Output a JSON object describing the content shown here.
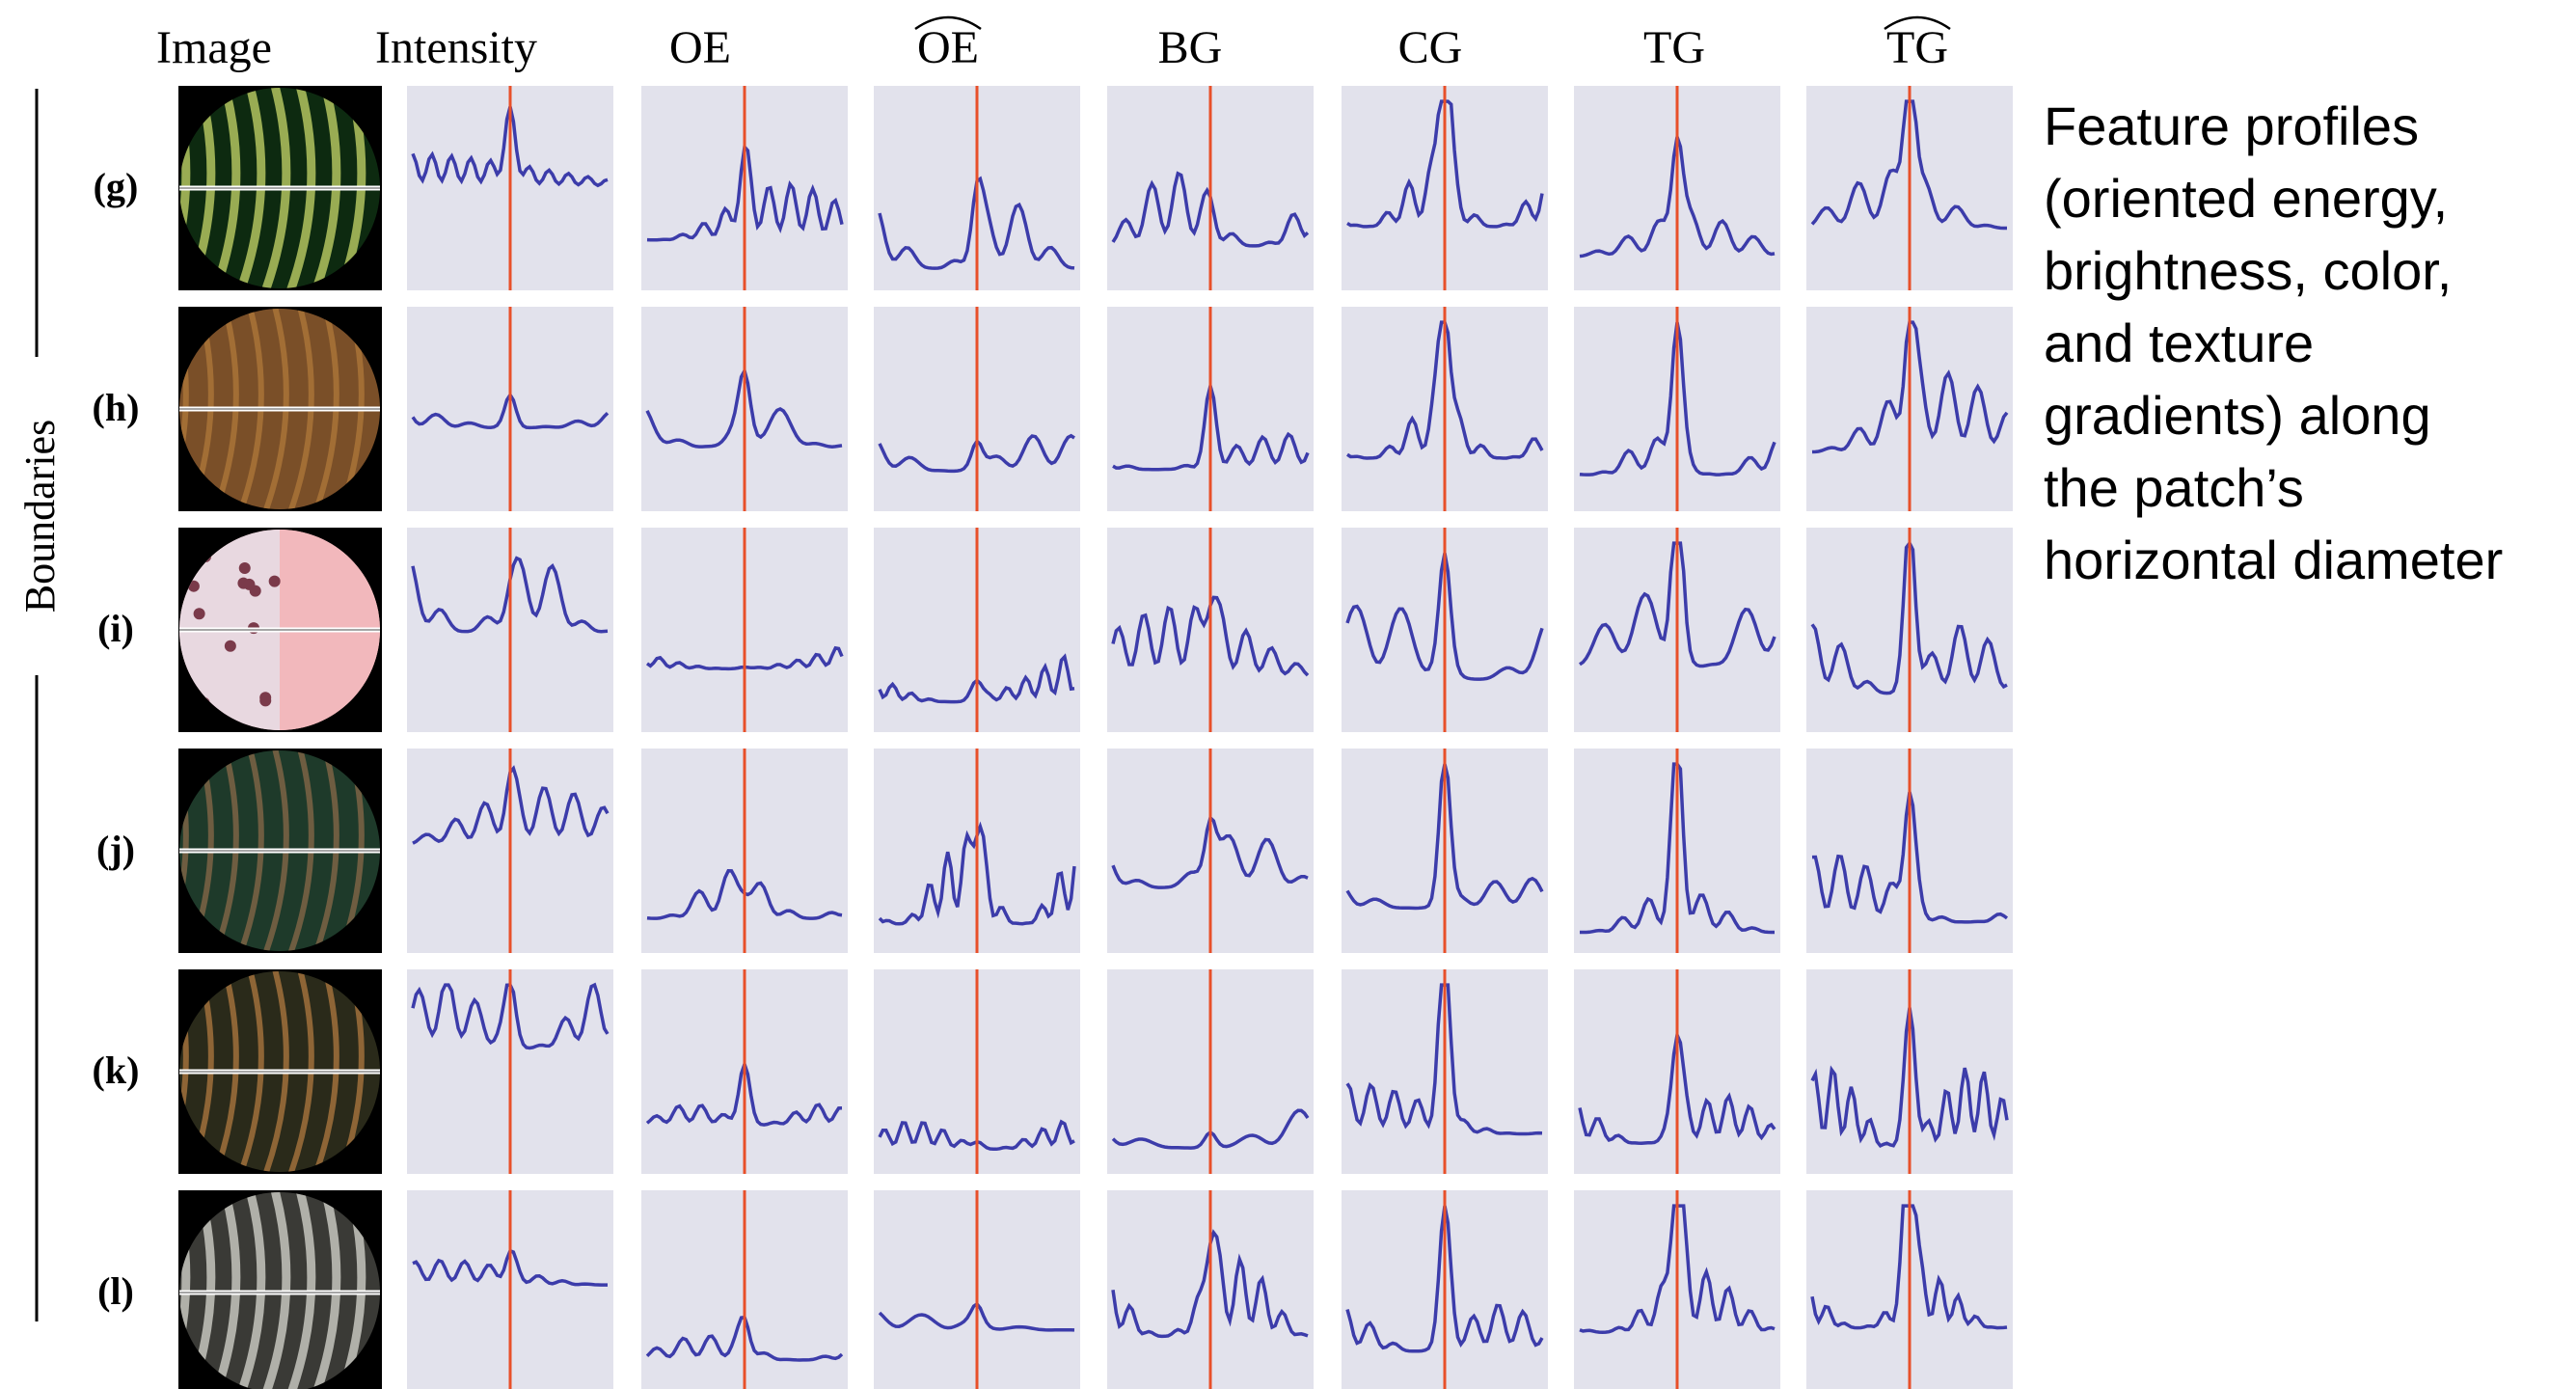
{
  "header": {
    "columns": [
      "Image",
      "Intensity",
      "OE",
      "OE",
      "BG",
      "CG",
      "TG",
      "TG"
    ]
  },
  "rows": {
    "labels": [
      "(g)",
      "(h)",
      "(i)",
      "(j)",
      "(k)",
      "(l)"
    ]
  },
  "side_label": "Boundaries",
  "caption": {
    "lines": [
      "Feature profiles",
      "(oriented energy,",
      "brightness, color,",
      "and texture",
      "gradients) along",
      "the patch’s",
      "horizontal diameter"
    ]
  }
}
